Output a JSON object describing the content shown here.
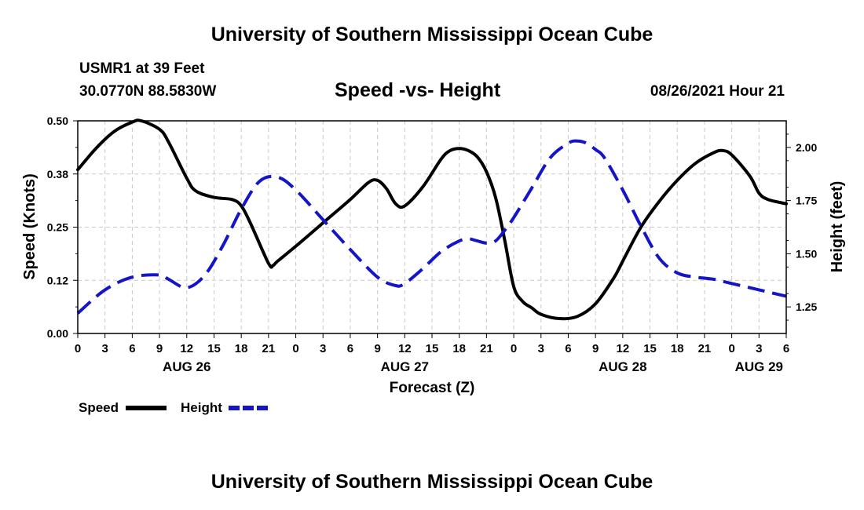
{
  "header": {
    "title": "University of Southern Mississippi Ocean Cube",
    "station": "USMR1 at 39 Feet",
    "coordinates": "30.0770N  88.5830W",
    "chart_title": "Speed -vs- Height",
    "date": "08/26/2021 Hour 21"
  },
  "footer": {
    "title": "University of Southern Mississippi Ocean Cube"
  },
  "legend": {
    "speed_label": "Speed",
    "height_label": "Height"
  },
  "colors": {
    "speed": "#000000",
    "height": "#1515c8",
    "grid": "#c8c8c8"
  },
  "chart_data": {
    "type": "line",
    "title": "Speed -vs- Height",
    "xlabel": "Forecast (Z)",
    "ylabel": "Speed (Knots)",
    "y2label": "Height (feet)",
    "x_unit": "hours since 2021-08-26 00Z",
    "xlim": [
      0,
      78
    ],
    "ylim": [
      0,
      0.5
    ],
    "y2lim": [
      1.125,
      2.125
    ],
    "yticks": [
      "0.00",
      "0.12",
      "0.25",
      "0.38",
      "0.50"
    ],
    "y2ticks": [
      "1.25",
      "1.50",
      "1.75",
      "2.00"
    ],
    "xtick_labels": [
      "0",
      "3",
      "6",
      "9",
      "12",
      "15",
      "18",
      "21",
      "0",
      "3",
      "6",
      "9",
      "12",
      "15",
      "18",
      "21",
      "0",
      "3",
      "6",
      "9",
      "12",
      "15",
      "18",
      "21",
      "0",
      "3",
      "6"
    ],
    "day_labels": [
      {
        "hour": 12,
        "label": "AUG 26"
      },
      {
        "hour": 36,
        "label": "AUG 27"
      },
      {
        "hour": 60,
        "label": "AUG 28"
      },
      {
        "hour": 75,
        "label": "AUG 29"
      }
    ],
    "series": [
      {
        "name": "Speed",
        "axis": "left",
        "style": "solid",
        "x": [
          0,
          2,
          4,
          6,
          7,
          9,
          10,
          12,
          13,
          15,
          17,
          18,
          19,
          21,
          21.5,
          22,
          24,
          27,
          30,
          32,
          33,
          34,
          35,
          36,
          38,
          40,
          41,
          42,
          43,
          44,
          45,
          46,
          47,
          48,
          49,
          50,
          51,
          53,
          55,
          57,
          59,
          60,
          62,
          64,
          66,
          68,
          70,
          71,
          72,
          74,
          75,
          76,
          78
        ],
        "values": [
          0.385,
          0.435,
          0.475,
          0.497,
          0.5,
          0.48,
          0.45,
          0.365,
          0.335,
          0.32,
          0.315,
          0.3,
          0.26,
          0.165,
          0.16,
          0.17,
          0.205,
          0.26,
          0.315,
          0.355,
          0.36,
          0.34,
          0.305,
          0.3,
          0.345,
          0.41,
          0.43,
          0.435,
          0.43,
          0.415,
          0.38,
          0.32,
          0.22,
          0.11,
          0.075,
          0.06,
          0.045,
          0.035,
          0.04,
          0.07,
          0.13,
          0.17,
          0.25,
          0.31,
          0.36,
          0.4,
          0.425,
          0.43,
          0.42,
          0.37,
          0.33,
          0.315,
          0.305
        ]
      },
      {
        "name": "Height",
        "axis": "right",
        "style": "dashed",
        "x": [
          0,
          3,
          6,
          9,
          10,
          12,
          14,
          16,
          18,
          20,
          22,
          24,
          27,
          30,
          33,
          35,
          36,
          38,
          40,
          42,
          43,
          44,
          45,
          46,
          47,
          48,
          50,
          52,
          54,
          55,
          56,
          57,
          58,
          60,
          62,
          64,
          66,
          68,
          70,
          72,
          74,
          76,
          78
        ],
        "values": [
          1.22,
          1.33,
          1.39,
          1.4,
          1.38,
          1.34,
          1.4,
          1.54,
          1.71,
          1.84,
          1.86,
          1.8,
          1.66,
          1.52,
          1.39,
          1.35,
          1.36,
          1.43,
          1.51,
          1.56,
          1.57,
          1.56,
          1.55,
          1.56,
          1.61,
          1.67,
          1.81,
          1.95,
          2.02,
          2.03,
          2.02,
          1.99,
          1.95,
          1.8,
          1.63,
          1.48,
          1.41,
          1.39,
          1.38,
          1.36,
          1.34,
          1.32,
          1.3
        ]
      }
    ]
  }
}
